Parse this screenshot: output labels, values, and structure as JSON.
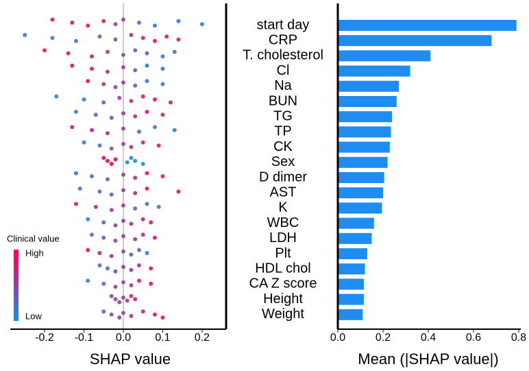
{
  "chart_data": [
    {
      "type": "beeswarm",
      "xlabel": "SHAP value",
      "xlim": [
        -0.287,
        0.261
      ],
      "xticks": [
        -0.2,
        -0.1,
        {
          "value": 0,
          "label": "0.0"
        },
        0.1,
        0.2
      ],
      "colorbar": {
        "title": "Clinical value",
        "high": "High",
        "low": "Low",
        "high_color": "#ff0052",
        "low_color": "#1e88e5"
      },
      "rows": [
        {
          "shap": [
            -0.18,
            -0.13,
            -0.09,
            -0.05,
            -0.02,
            0.0,
            0.04,
            0.08,
            0.14,
            0.2
          ],
          "level": [
            0.9,
            0.95,
            0.85,
            0.8,
            0.5,
            0.5,
            0.2,
            0.1,
            0.1,
            0.05
          ]
        },
        {
          "shap": [
            -0.25,
            -0.18,
            -0.12,
            -0.06,
            -0.02,
            0.02,
            0.05,
            0.08,
            0.11,
            0.14
          ],
          "level": [
            0.1,
            0.1,
            0.15,
            0.3,
            0.4,
            0.6,
            0.8,
            0.9,
            0.9,
            0.85
          ]
        },
        {
          "shap": [
            -0.2,
            -0.14,
            -0.08,
            -0.04,
            0.0,
            0.03,
            0.06,
            0.1,
            0.13
          ],
          "level": [
            0.9,
            0.9,
            0.8,
            0.6,
            0.4,
            0.3,
            0.2,
            0.1,
            0.1
          ]
        },
        {
          "shap": [
            -0.13,
            -0.08,
            -0.04,
            0.0,
            0.03,
            0.06,
            0.1
          ],
          "level": [
            0.9,
            0.85,
            0.6,
            0.5,
            0.3,
            0.15,
            0.1
          ]
        },
        {
          "shap": [
            -0.09,
            -0.05,
            -0.02,
            0.0,
            0.03,
            0.06,
            0.1
          ],
          "level": [
            0.9,
            0.7,
            0.5,
            0.5,
            0.3,
            0.2,
            0.1
          ]
        },
        {
          "shap": [
            -0.17,
            -0.1,
            -0.05,
            -0.01,
            0.02,
            0.05,
            0.08,
            0.12
          ],
          "level": [
            0.1,
            0.1,
            0.2,
            0.5,
            0.7,
            0.8,
            0.9,
            0.9
          ]
        },
        {
          "shap": [
            -0.12,
            -0.07,
            -0.03,
            0.0,
            0.03,
            0.06,
            0.1
          ],
          "level": [
            0.1,
            0.2,
            0.4,
            0.6,
            0.7,
            0.8,
            0.8
          ]
        },
        {
          "shap": [
            -0.13,
            -0.08,
            -0.04,
            0.0,
            0.04,
            0.08,
            0.13
          ],
          "level": [
            0.9,
            0.9,
            0.7,
            0.5,
            0.3,
            0.2,
            0.1
          ]
        },
        {
          "shap": [
            -0.1,
            -0.06,
            -0.03,
            0.0,
            0.02,
            0.05,
            0.09
          ],
          "level": [
            0.1,
            0.2,
            0.4,
            0.5,
            0.6,
            0.7,
            0.8
          ]
        },
        {
          "shap": [
            -0.05,
            -0.04,
            -0.03,
            -0.02,
            0.01,
            0.02,
            0.03,
            0.05
          ],
          "level": [
            1,
            1,
            1,
            1,
            0,
            0,
            0,
            0
          ]
        },
        {
          "shap": [
            -0.12,
            -0.08,
            -0.04,
            0.0,
            0.03,
            0.06,
            0.1
          ],
          "level": [
            0.1,
            0.2,
            0.3,
            0.5,
            0.7,
            0.9,
            0.9
          ]
        },
        {
          "shap": [
            -0.11,
            -0.06,
            -0.03,
            0.0,
            0.03,
            0.06,
            0.14
          ],
          "level": [
            0.1,
            0.2,
            0.3,
            0.5,
            0.7,
            0.8,
            0.9
          ]
        },
        {
          "shap": [
            -0.12,
            -0.07,
            -0.03,
            0.0,
            0.03,
            0.06,
            0.09
          ],
          "level": [
            0.9,
            0.8,
            0.6,
            0.5,
            0.3,
            0.2,
            0.1
          ]
        },
        {
          "shap": [
            -0.09,
            -0.05,
            -0.02,
            0.0,
            0.02,
            0.05,
            0.07
          ],
          "level": [
            0.1,
            0.3,
            0.5,
            0.6,
            0.7,
            0.8,
            0.8
          ]
        },
        {
          "shap": [
            -0.08,
            -0.05,
            -0.02,
            0.0,
            0.03,
            0.05,
            0.08
          ],
          "level": [
            0.2,
            0.3,
            0.5,
            0.5,
            0.6,
            0.7,
            0.8
          ]
        },
        {
          "shap": [
            -0.09,
            -0.06,
            -0.03,
            0.0,
            0.02,
            0.04,
            0.06
          ],
          "level": [
            0.9,
            0.8,
            0.6,
            0.4,
            0.3,
            0.2,
            0.1
          ]
        },
        {
          "shap": [
            -0.06,
            -0.04,
            -0.02,
            0.0,
            0.02,
            0.04,
            0.07
          ],
          "level": [
            0.2,
            0.3,
            0.5,
            0.5,
            0.6,
            0.7,
            0.8
          ]
        },
        {
          "shap": [
            -0.09,
            -0.05,
            -0.02,
            0.0,
            0.02,
            0.04,
            0.07
          ],
          "level": [
            0.1,
            0.2,
            0.5,
            0.5,
            0.6,
            0.8,
            0.9
          ]
        },
        {
          "shap": [
            -0.03,
            -0.02,
            -0.01,
            0.0,
            0.01,
            0.02,
            0.03
          ],
          "level": [
            0.4,
            0.5,
            0.6,
            0.5,
            0.6,
            0.7,
            0.8
          ]
        },
        {
          "shap": [
            -0.05,
            -0.03,
            -0.01,
            0.0,
            0.02,
            0.05,
            0.08,
            0.1
          ],
          "level": [
            0.3,
            0.4,
            0.5,
            0.5,
            0.6,
            0.8,
            0.9,
            0.9
          ]
        }
      ]
    },
    {
      "type": "bar",
      "orientation": "horizontal",
      "xlabel": "Mean (|SHAP value|)",
      "categories": [
        "start day",
        "CRP",
        "T. cholesterol",
        "Cl",
        "Na",
        "BUN",
        "TG",
        "TP",
        "CK",
        "Sex",
        "D dimer",
        "AST",
        "K",
        "WBC",
        "LDH",
        "Plt",
        "HDL chol",
        "CA Z score",
        "Height",
        "Weight"
      ],
      "values": [
        0.79,
        0.68,
        0.41,
        0.32,
        0.27,
        0.26,
        0.24,
        0.235,
        0.23,
        0.22,
        0.205,
        0.2,
        0.195,
        0.16,
        0.15,
        0.13,
        0.12,
        0.115,
        0.115,
        0.11
      ],
      "color": "#1e8cf0",
      "xlim": [
        0,
        0.8
      ],
      "xticks": [
        {
          "value": 0,
          "label": "0.0"
        },
        0.2,
        0.4,
        0.6,
        0.8
      ]
    }
  ]
}
